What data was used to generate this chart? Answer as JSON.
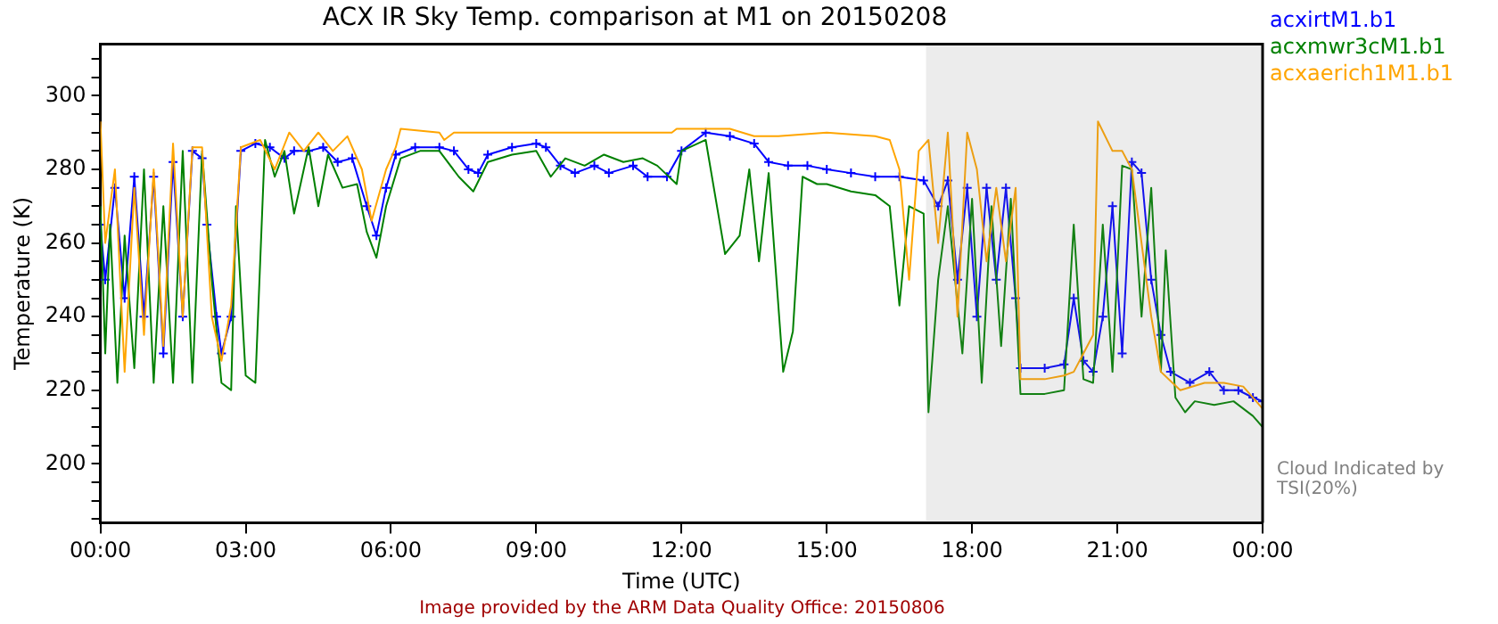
{
  "chart_data": {
    "type": "line",
    "title": "ACX IR Sky Temp. comparison at M1 on 20150208",
    "xlabel": "Time (UTC)",
    "ylabel": "Temperature (K)",
    "xlim": [
      0,
      24
    ],
    "xticks": [
      {
        "value": 0,
        "label": "00:00"
      },
      {
        "value": 3,
        "label": "03:00"
      },
      {
        "value": 6,
        "label": "06:00"
      },
      {
        "value": 9,
        "label": "09:00"
      },
      {
        "value": 12,
        "label": "12:00"
      },
      {
        "value": 15,
        "label": "15:00"
      },
      {
        "value": 18,
        "label": "18:00"
      },
      {
        "value": 21,
        "label": "21:00"
      },
      {
        "value": 24,
        "label": "00:00"
      }
    ],
    "ylim": [
      184,
      314
    ],
    "yticks": [
      {
        "value": 185,
        "label": null
      },
      {
        "value": 190,
        "label": null
      },
      {
        "value": 195,
        "label": null
      },
      200,
      {
        "value": 205,
        "label": null
      },
      {
        "value": 210,
        "label": null
      },
      {
        "value": 215,
        "label": null
      },
      220,
      {
        "value": 225,
        "label": null
      },
      {
        "value": 230,
        "label": null
      },
      {
        "value": 235,
        "label": null
      },
      240,
      {
        "value": 245,
        "label": null
      },
      {
        "value": 250,
        "label": null
      },
      {
        "value": 255,
        "label": null
      },
      260,
      {
        "value": 265,
        "label": null
      },
      {
        "value": 270,
        "label": null
      },
      {
        "value": 275,
        "label": null
      },
      280,
      {
        "value": 285,
        "label": null
      },
      {
        "value": 290,
        "label": null
      },
      {
        "value": 295,
        "label": null
      },
      300,
      {
        "value": 305,
        "label": null
      },
      {
        "value": 310,
        "label": null
      }
    ],
    "grid": false,
    "legend": "top right",
    "marker": "none",
    "line_style": "solid",
    "series": [
      {
        "name": "acxirtM1.b1",
        "color": "#0000ff",
        "marker": "cross",
        "x": [
          0,
          0.1,
          0.3,
          0.5,
          0.7,
          0.9,
          1.1,
          1.3,
          1.5,
          1.7,
          1.9,
          2.1,
          2.2,
          2.4,
          2.5,
          2.7,
          2.9,
          3.2,
          3.5,
          3.8,
          4,
          4.3,
          4.6,
          4.9,
          5.2,
          5.5,
          5.7,
          5.9,
          6.1,
          6.5,
          7,
          7.3,
          7.6,
          7.8,
          8,
          8.5,
          9,
          9.2,
          9.5,
          9.8,
          10.2,
          10.5,
          11,
          11.3,
          11.7,
          12,
          12.5,
          13,
          13.5,
          13.8,
          14.2,
          14.6,
          15,
          15.5,
          16,
          16.5,
          17,
          17.3,
          17.5,
          17.7,
          17.9,
          18.1,
          18.3,
          18.5,
          18.7,
          18.9,
          19,
          19.5,
          19.9,
          20.1,
          20.3,
          20.5,
          20.7,
          20.9,
          21.1,
          21.3,
          21.5,
          21.7,
          21.9,
          22.1,
          22.5,
          22.9,
          23.2,
          23.5,
          23.8,
          24
        ],
        "values": [
          265,
          250,
          275,
          245,
          278,
          240,
          278,
          230,
          282,
          240,
          285,
          283,
          265,
          240,
          230,
          240,
          285,
          287,
          286,
          283,
          285,
          285,
          286,
          282,
          283,
          270,
          262,
          275,
          284,
          286,
          286,
          285,
          280,
          279,
          284,
          286,
          287,
          286,
          281,
          279,
          281,
          279,
          281,
          278,
          278,
          285,
          290,
          289,
          287,
          282,
          281,
          281,
          280,
          279,
          278,
          278,
          277,
          270,
          277,
          250,
          275,
          240,
          275,
          250,
          275,
          245,
          226,
          226,
          227,
          245,
          228,
          225,
          240,
          270,
          230,
          282,
          279,
          250,
          235,
          225,
          222,
          225,
          220,
          220,
          218,
          217
        ]
      },
      {
        "name": "acxmwr3cM1.b1",
        "color": "#008000",
        "x": [
          0,
          0.1,
          0.2,
          0.35,
          0.5,
          0.7,
          0.9,
          1.1,
          1.3,
          1.5,
          1.7,
          1.9,
          2.1,
          2.3,
          2.5,
          2.7,
          2.8,
          3,
          3.2,
          3.4,
          3.6,
          3.8,
          4,
          4.3,
          4.5,
          4.7,
          5,
          5.3,
          5.5,
          5.7,
          5.9,
          6.2,
          6.6,
          7,
          7.4,
          7.7,
          8,
          8.5,
          9,
          9.3,
          9.6,
          10,
          10.4,
          10.8,
          11.2,
          11.5,
          11.9,
          12,
          12.5,
          12.9,
          13.2,
          13.4,
          13.6,
          13.8,
          14.1,
          14.3,
          14.5,
          14.8,
          15,
          15.5,
          16,
          16.3,
          16.5,
          16.7,
          17,
          17.1,
          17.3,
          17.5,
          17.8,
          18,
          18.2,
          18.4,
          18.6,
          18.8,
          19,
          19.5,
          19.9,
          20.1,
          20.3,
          20.5,
          20.7,
          20.9,
          21.1,
          21.3,
          21.5,
          21.7,
          21.9,
          22,
          22.2,
          22.4,
          22.6,
          23,
          23.4,
          23.8,
          24
        ],
        "values": [
          270,
          230,
          265,
          222,
          262,
          226,
          280,
          222,
          270,
          222,
          285,
          222,
          285,
          250,
          222,
          220,
          270,
          224,
          222,
          288,
          278,
          285,
          268,
          286,
          270,
          284,
          275,
          276,
          263,
          256,
          270,
          283,
          285,
          285,
          278,
          274,
          282,
          284,
          285,
          278,
          283,
          281,
          284,
          282,
          283,
          281,
          276,
          285,
          288,
          257,
          262,
          280,
          255,
          279,
          225,
          236,
          278,
          276,
          276,
          274,
          273,
          270,
          243,
          270,
          268,
          214,
          250,
          270,
          230,
          272,
          222,
          270,
          232,
          272,
          219,
          219,
          220,
          265,
          223,
          222,
          265,
          225,
          281,
          280,
          240,
          275,
          225,
          258,
          218,
          214,
          217,
          216,
          217,
          213,
          210
        ]
      },
      {
        "name": "acxaerich1M1.b1",
        "color": "#ffa500",
        "x": [
          0,
          0.1,
          0.3,
          0.5,
          0.7,
          0.9,
          1.1,
          1.3,
          1.5,
          1.7,
          1.9,
          2.1,
          2.3,
          2.5,
          2.7,
          2.9,
          3.3,
          3.6,
          3.9,
          4.2,
          4.5,
          4.8,
          5.1,
          5.4,
          5.6,
          5.9,
          6.1,
          6.2,
          7,
          7.1,
          7.3,
          8,
          9,
          10,
          11,
          11.8,
          11.9,
          12.5,
          13,
          13.5,
          14,
          15,
          16,
          16.3,
          16.5,
          16.7,
          16.9,
          17.1,
          17.3,
          17.5,
          17.7,
          17.9,
          18.1,
          18.3,
          18.5,
          18.7,
          18.9,
          19,
          19.5,
          19.9,
          20.1,
          20.3,
          20.5,
          20.6,
          20.9,
          21.1,
          21.3,
          21.5,
          21.7,
          21.9,
          22.3,
          22.8,
          23.2,
          23.6,
          24
        ],
        "values": [
          293,
          260,
          280,
          225,
          275,
          235,
          280,
          232,
          287,
          240,
          286,
          286,
          240,
          228,
          243,
          286,
          288,
          280,
          290,
          285,
          290,
          285,
          289,
          280,
          266,
          280,
          286,
          291,
          290,
          288,
          290,
          290,
          290,
          290,
          290,
          290,
          291,
          291,
          291,
          289,
          289,
          290,
          289,
          288,
          280,
          250,
          285,
          288,
          260,
          290,
          240,
          290,
          280,
          255,
          275,
          255,
          275,
          223,
          223,
          224,
          225,
          230,
          235,
          293,
          285,
          285,
          280,
          260,
          240,
          225,
          220,
          222,
          222,
          221,
          215
        ]
      }
    ],
    "bands": [
      {
        "axis": "x",
        "from": 17.05,
        "to": 24,
        "color": "#808080"
      }
    ],
    "annotations": [
      "Cloud Indicated by TSI(20%)",
      "Image provided by the ARM Data Quality Office: 20150806"
    ]
  }
}
